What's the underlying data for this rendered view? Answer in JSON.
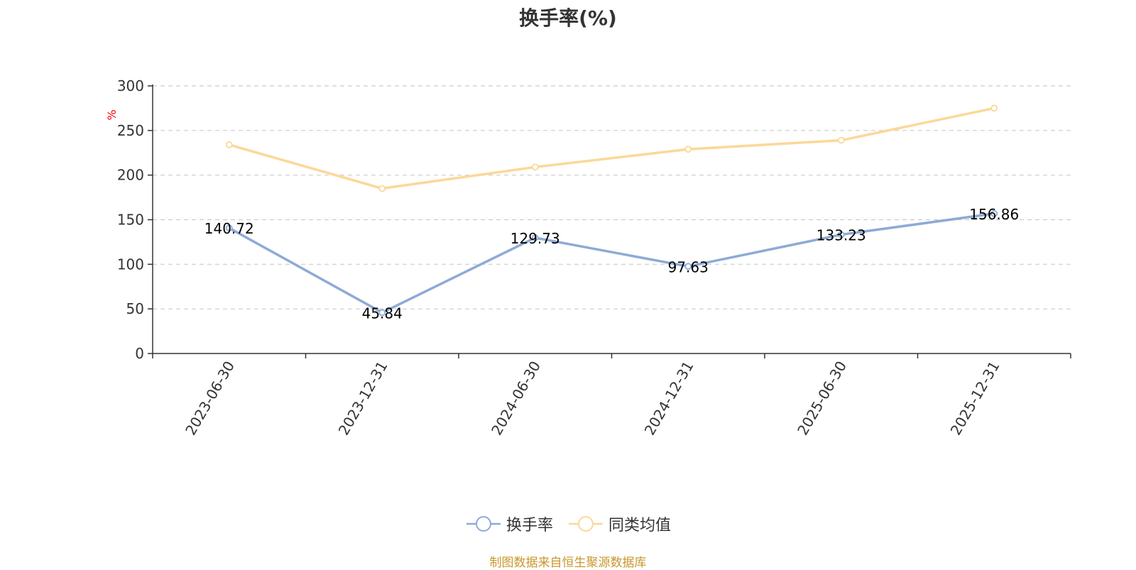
{
  "chart_data": {
    "type": "line",
    "title": "换手率(%)",
    "ylabel": "%",
    "x": [
      "2023-06-30",
      "2023-12-31",
      "2024-06-30",
      "2024-12-31",
      "2025-06-30",
      "2025-12-31"
    ],
    "ylim": [
      0,
      300
    ],
    "yticks": [
      0,
      50,
      100,
      150,
      200,
      250,
      300
    ],
    "grid": true,
    "legend_position": "bottom",
    "series": [
      {
        "name": "换手率",
        "values": [
          140.72,
          45.84,
          129.73,
          97.63,
          133.23,
          156.86
        ],
        "show_labels": true,
        "color": "#8eaad6"
      },
      {
        "name": "同类均值",
        "values": [
          234,
          185,
          209,
          229,
          239,
          275
        ],
        "show_labels": false,
        "color": "#fbd898"
      }
    ]
  },
  "source_note": "制图数据来自恒生聚源数据库",
  "colors": {
    "axis": "#333333",
    "grid": "#cccccc",
    "unit_label": "#ff0000",
    "source_note": "#c8972e"
  }
}
